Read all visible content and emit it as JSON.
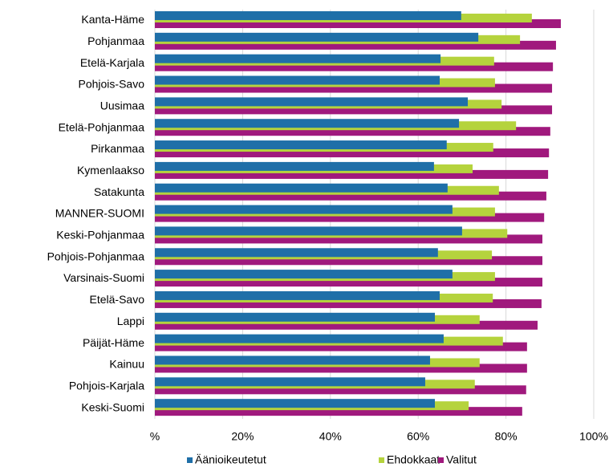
{
  "chart_data": {
    "type": "bar",
    "orientation": "horizontal",
    "categories": [
      "Kanta-Häme",
      "Pohjanmaa",
      "Etelä-Karjala",
      "Pohjois-Savo",
      "Uusimaa",
      "Etelä-Pohjanmaa",
      "Pirkanmaa",
      "Kymenlaakso",
      "Satakunta",
      "MANNER-SUOMI",
      "Keski-Pohjanmaa",
      "Pohjois-Pohjanmaa",
      "Varsinais-Suomi",
      "Etelä-Savo",
      "Lappi",
      "Päijät-Häme",
      "Kainuu",
      "Pohjois-Karjala",
      "Keski-Suomi"
    ],
    "series": [
      {
        "name": "Äänioikeutetut",
        "color": "#1f6fa8",
        "values": [
          69.8,
          73.7,
          65.1,
          64.9,
          71.3,
          69.3,
          66.5,
          63.6,
          66.7,
          67.8,
          70.0,
          64.5,
          67.8,
          64.9,
          63.8,
          65.8,
          62.7,
          61.6,
          63.8
        ]
      },
      {
        "name": "Ehdokkaat",
        "color": "#b5d33d",
        "values": [
          85.9,
          83.2,
          77.3,
          77.5,
          79.0,
          82.3,
          77.1,
          72.4,
          78.4,
          77.5,
          80.3,
          76.8,
          77.5,
          77.0,
          74.0,
          79.3,
          74.0,
          72.9,
          71.5
        ]
      },
      {
        "name": "Valitut",
        "color": "#a0197d",
        "values": [
          92.5,
          91.4,
          90.7,
          90.5,
          90.5,
          90.1,
          89.8,
          89.6,
          89.2,
          88.7,
          88.3,
          88.3,
          88.3,
          88.1,
          87.2,
          84.8,
          84.8,
          84.6,
          83.7
        ]
      }
    ],
    "xlim": [
      0,
      100
    ],
    "xticks": [
      {
        "value": 0,
        "label": "%"
      },
      {
        "value": 20,
        "label": "20%"
      },
      {
        "value": 40,
        "label": "40%"
      },
      {
        "value": 60,
        "label": "60%"
      },
      {
        "value": 80,
        "label": "80%"
      },
      {
        "value": 100,
        "label": "100%"
      }
    ],
    "grid": true,
    "legend": "bottom"
  }
}
